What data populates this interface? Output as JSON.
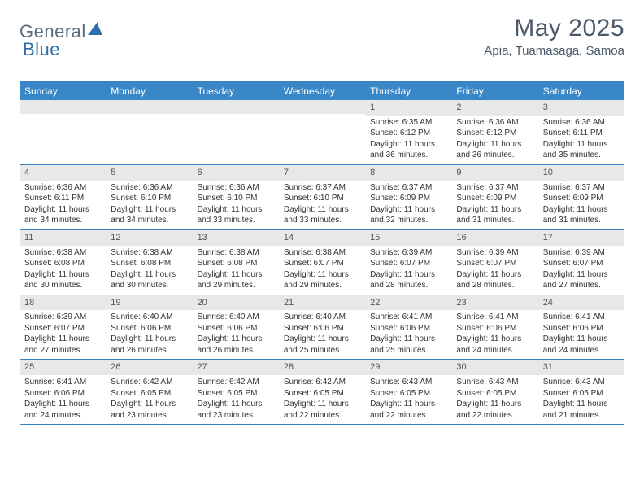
{
  "logo": {
    "text1": "General",
    "text2": "Blue"
  },
  "title": "May 2025",
  "location": "Apia, Tuamasaga, Samoa",
  "colors": {
    "header_bg": "#3a87c7",
    "border": "#3a7fbf",
    "daynum_bg": "#e8e8e8",
    "text": "#333333",
    "title_text": "#4a5a68",
    "logo_gray": "#5a6b7a",
    "logo_blue": "#2f6fa8"
  },
  "weekdays": [
    "Sunday",
    "Monday",
    "Tuesday",
    "Wednesday",
    "Thursday",
    "Friday",
    "Saturday"
  ],
  "weeks": [
    [
      {
        "n": "",
        "lines": []
      },
      {
        "n": "",
        "lines": []
      },
      {
        "n": "",
        "lines": []
      },
      {
        "n": "",
        "lines": []
      },
      {
        "n": "1",
        "lines": [
          "Sunrise: 6:35 AM",
          "Sunset: 6:12 PM",
          "Daylight: 11 hours and 36 minutes."
        ]
      },
      {
        "n": "2",
        "lines": [
          "Sunrise: 6:36 AM",
          "Sunset: 6:12 PM",
          "Daylight: 11 hours and 36 minutes."
        ]
      },
      {
        "n": "3",
        "lines": [
          "Sunrise: 6:36 AM",
          "Sunset: 6:11 PM",
          "Daylight: 11 hours and 35 minutes."
        ]
      }
    ],
    [
      {
        "n": "4",
        "lines": [
          "Sunrise: 6:36 AM",
          "Sunset: 6:11 PM",
          "Daylight: 11 hours and 34 minutes."
        ]
      },
      {
        "n": "5",
        "lines": [
          "Sunrise: 6:36 AM",
          "Sunset: 6:10 PM",
          "Daylight: 11 hours and 34 minutes."
        ]
      },
      {
        "n": "6",
        "lines": [
          "Sunrise: 6:36 AM",
          "Sunset: 6:10 PM",
          "Daylight: 11 hours and 33 minutes."
        ]
      },
      {
        "n": "7",
        "lines": [
          "Sunrise: 6:37 AM",
          "Sunset: 6:10 PM",
          "Daylight: 11 hours and 33 minutes."
        ]
      },
      {
        "n": "8",
        "lines": [
          "Sunrise: 6:37 AM",
          "Sunset: 6:09 PM",
          "Daylight: 11 hours and 32 minutes."
        ]
      },
      {
        "n": "9",
        "lines": [
          "Sunrise: 6:37 AM",
          "Sunset: 6:09 PM",
          "Daylight: 11 hours and 31 minutes."
        ]
      },
      {
        "n": "10",
        "lines": [
          "Sunrise: 6:37 AM",
          "Sunset: 6:09 PM",
          "Daylight: 11 hours and 31 minutes."
        ]
      }
    ],
    [
      {
        "n": "11",
        "lines": [
          "Sunrise: 6:38 AM",
          "Sunset: 6:08 PM",
          "Daylight: 11 hours and 30 minutes."
        ]
      },
      {
        "n": "12",
        "lines": [
          "Sunrise: 6:38 AM",
          "Sunset: 6:08 PM",
          "Daylight: 11 hours and 30 minutes."
        ]
      },
      {
        "n": "13",
        "lines": [
          "Sunrise: 6:38 AM",
          "Sunset: 6:08 PM",
          "Daylight: 11 hours and 29 minutes."
        ]
      },
      {
        "n": "14",
        "lines": [
          "Sunrise: 6:38 AM",
          "Sunset: 6:07 PM",
          "Daylight: 11 hours and 29 minutes."
        ]
      },
      {
        "n": "15",
        "lines": [
          "Sunrise: 6:39 AM",
          "Sunset: 6:07 PM",
          "Daylight: 11 hours and 28 minutes."
        ]
      },
      {
        "n": "16",
        "lines": [
          "Sunrise: 6:39 AM",
          "Sunset: 6:07 PM",
          "Daylight: 11 hours and 28 minutes."
        ]
      },
      {
        "n": "17",
        "lines": [
          "Sunrise: 6:39 AM",
          "Sunset: 6:07 PM",
          "Daylight: 11 hours and 27 minutes."
        ]
      }
    ],
    [
      {
        "n": "18",
        "lines": [
          "Sunrise: 6:39 AM",
          "Sunset: 6:07 PM",
          "Daylight: 11 hours and 27 minutes."
        ]
      },
      {
        "n": "19",
        "lines": [
          "Sunrise: 6:40 AM",
          "Sunset: 6:06 PM",
          "Daylight: 11 hours and 26 minutes."
        ]
      },
      {
        "n": "20",
        "lines": [
          "Sunrise: 6:40 AM",
          "Sunset: 6:06 PM",
          "Daylight: 11 hours and 26 minutes."
        ]
      },
      {
        "n": "21",
        "lines": [
          "Sunrise: 6:40 AM",
          "Sunset: 6:06 PM",
          "Daylight: 11 hours and 25 minutes."
        ]
      },
      {
        "n": "22",
        "lines": [
          "Sunrise: 6:41 AM",
          "Sunset: 6:06 PM",
          "Daylight: 11 hours and 25 minutes."
        ]
      },
      {
        "n": "23",
        "lines": [
          "Sunrise: 6:41 AM",
          "Sunset: 6:06 PM",
          "Daylight: 11 hours and 24 minutes."
        ]
      },
      {
        "n": "24",
        "lines": [
          "Sunrise: 6:41 AM",
          "Sunset: 6:06 PM",
          "Daylight: 11 hours and 24 minutes."
        ]
      }
    ],
    [
      {
        "n": "25",
        "lines": [
          "Sunrise: 6:41 AM",
          "Sunset: 6:06 PM",
          "Daylight: 11 hours and 24 minutes."
        ]
      },
      {
        "n": "26",
        "lines": [
          "Sunrise: 6:42 AM",
          "Sunset: 6:05 PM",
          "Daylight: 11 hours and 23 minutes."
        ]
      },
      {
        "n": "27",
        "lines": [
          "Sunrise: 6:42 AM",
          "Sunset: 6:05 PM",
          "Daylight: 11 hours and 23 minutes."
        ]
      },
      {
        "n": "28",
        "lines": [
          "Sunrise: 6:42 AM",
          "Sunset: 6:05 PM",
          "Daylight: 11 hours and 22 minutes."
        ]
      },
      {
        "n": "29",
        "lines": [
          "Sunrise: 6:43 AM",
          "Sunset: 6:05 PM",
          "Daylight: 11 hours and 22 minutes."
        ]
      },
      {
        "n": "30",
        "lines": [
          "Sunrise: 6:43 AM",
          "Sunset: 6:05 PM",
          "Daylight: 11 hours and 22 minutes."
        ]
      },
      {
        "n": "31",
        "lines": [
          "Sunrise: 6:43 AM",
          "Sunset: 6:05 PM",
          "Daylight: 11 hours and 21 minutes."
        ]
      }
    ]
  ]
}
